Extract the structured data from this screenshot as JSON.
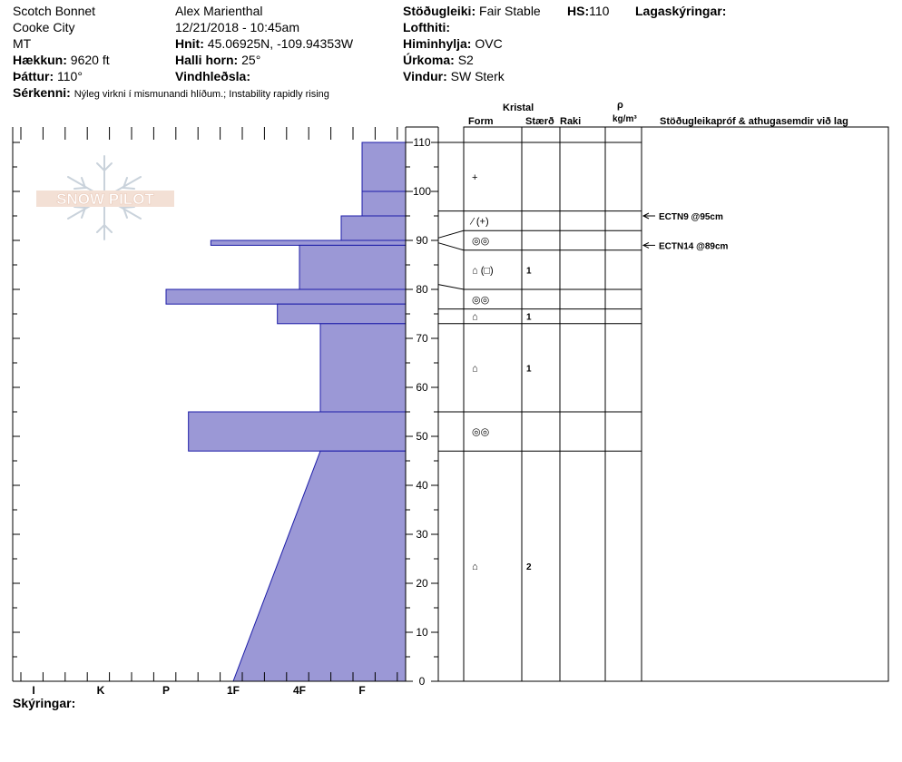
{
  "header": {
    "location": "Scotch Bonnet",
    "area": "Cooke City",
    "state": "MT",
    "elevation_label": "Hækkun:",
    "elevation": "9620 ft",
    "aspect_label": "Þáttur:",
    "aspect": "110°",
    "observer": "Alex Marienthal",
    "datetime": "12/21/2018 - 10:45am",
    "coords_label": "Hnit:",
    "coords": "45.06925N, -109.94353W",
    "slope_label": "Halli horn:",
    "slope": "25°",
    "wind_loading_label": "Vindhleðsla:",
    "wind_loading": "",
    "stability_label": "Stöðugleiki:",
    "stability": "Fair Stable",
    "hs_label": "HS:",
    "hs": "110",
    "layer_notes_label": "Lagaskýringar:",
    "air_temp_label": "Lofthiti:",
    "air_temp": "",
    "sky_label": "Himinhylja:",
    "sky": "OVC",
    "precip_label": "Úrkoma:",
    "precip": "S2",
    "wind_label": "Vindur:",
    "wind": "SW Sterk",
    "specifics_label": "Sérkenni:",
    "specifics": "Nýleg virkni í mismunandi hlíðum.; Instability rapidly rising",
    "notes_label": "Skýringar:"
  },
  "logo_text": "SNOW PILOT",
  "columns": {
    "crystal": "Kristal",
    "form": "Form",
    "size": "Stærð",
    "moisture": "Raki",
    "rho": "ρ",
    "density_unit": "kg/m³",
    "tests": "Stöðugleikapróf & athugasemdir við lag"
  },
  "chart_data": {
    "type": "bar",
    "orientation": "horizontal",
    "subtype": "snow-profile-hand-hardness",
    "y_axis": {
      "range": [
        0,
        110
      ],
      "ticks": [
        0,
        10,
        20,
        30,
        40,
        50,
        60,
        70,
        80,
        90,
        100,
        110
      ]
    },
    "x_axis": {
      "categories": [
        "I",
        "K",
        "P",
        "1F",
        "4F",
        "F"
      ]
    },
    "hardness_layers": [
      {
        "bottom": 100,
        "top": 110,
        "hardness": "F"
      },
      {
        "bottom": 95,
        "top": 100,
        "hardness": "F"
      },
      {
        "bottom": 90,
        "top": 95,
        "hardness": "F+"
      },
      {
        "bottom": 89,
        "top": 90,
        "hardness": "1F+"
      },
      {
        "bottom": 80,
        "top": 89,
        "hardness": "4F"
      },
      {
        "bottom": 77,
        "top": 80,
        "hardness": "P"
      },
      {
        "bottom": 73,
        "top": 77,
        "hardness": "4F+"
      },
      {
        "bottom": 55,
        "top": 73,
        "hardness": "4F-"
      },
      {
        "bottom": 47,
        "top": 55,
        "hardness": "P-"
      },
      {
        "bottom": 0,
        "top": 47,
        "hardness_at_top": "4F-",
        "hardness_at_bottom": "1F",
        "gradient": true
      }
    ],
    "layer_boundaries": [
      110,
      96,
      92,
      88,
      80,
      76,
      73,
      55,
      47
    ],
    "crystal_layers": [
      {
        "mid": 103,
        "form": "+",
        "size": ""
      },
      {
        "mid": 94,
        "form": "⁄ (+)",
        "size": ""
      },
      {
        "mid": 90,
        "form": "◎◎",
        "size": ""
      },
      {
        "mid": 84,
        "form": "⌂ (□)",
        "size": "1"
      },
      {
        "mid": 78,
        "form": "◎◎",
        "size": ""
      },
      {
        "mid": 74.5,
        "form": "⌂",
        "size": "1"
      },
      {
        "mid": 64,
        "form": "⌂",
        "size": "1"
      },
      {
        "mid": 51,
        "form": "◎◎",
        "size": ""
      },
      {
        "mid": 23.5,
        "form": "⌂",
        "size": "2"
      }
    ],
    "tests": [
      {
        "depth": 95,
        "label": "ECTN9 @95cm"
      },
      {
        "depth": 89,
        "label": "ECTN14 @89cm"
      }
    ]
  }
}
